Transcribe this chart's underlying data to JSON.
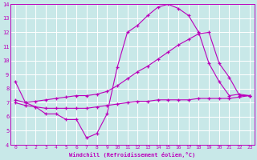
{
  "xlabel": "Windchill (Refroidissement éolien,°C)",
  "bg_color": "#c8e8e8",
  "grid_color": "#ffffff",
  "line_color": "#bb00bb",
  "xlim": [
    -0.5,
    23.5
  ],
  "ylim": [
    4,
    14
  ],
  "xticks": [
    0,
    1,
    2,
    3,
    4,
    5,
    6,
    7,
    8,
    9,
    10,
    11,
    12,
    13,
    14,
    15,
    16,
    17,
    18,
    19,
    20,
    21,
    22,
    23
  ],
  "yticks": [
    4,
    5,
    6,
    7,
    8,
    9,
    10,
    11,
    12,
    13,
    14
  ],
  "line1_x": [
    0,
    1,
    2,
    3,
    4,
    5,
    6,
    7,
    8,
    9,
    10,
    11,
    12,
    13,
    14,
    15,
    16,
    17,
    18,
    19,
    20,
    21,
    22,
    23
  ],
  "line1_y": [
    8.5,
    7.0,
    6.7,
    6.2,
    6.2,
    5.8,
    5.8,
    4.5,
    4.8,
    6.2,
    9.5,
    12.0,
    12.5,
    13.2,
    13.8,
    14.0,
    13.7,
    13.2,
    12.0,
    9.8,
    8.5,
    7.5,
    7.6,
    7.5
  ],
  "line2_x": [
    0,
    1,
    2,
    3,
    4,
    5,
    6,
    7,
    8,
    9,
    10,
    11,
    12,
    13,
    14,
    15,
    16,
    17,
    18,
    19,
    20,
    21,
    22,
    23
  ],
  "line2_y": [
    7.2,
    7.0,
    7.1,
    7.2,
    7.3,
    7.4,
    7.5,
    7.5,
    7.6,
    7.8,
    8.2,
    8.7,
    9.2,
    9.6,
    10.1,
    10.6,
    11.1,
    11.5,
    11.9,
    12.0,
    9.8,
    8.8,
    7.5,
    7.5
  ],
  "line3_x": [
    0,
    1,
    2,
    3,
    4,
    5,
    6,
    7,
    8,
    9,
    10,
    11,
    12,
    13,
    14,
    15,
    16,
    17,
    18,
    19,
    20,
    21,
    22,
    23
  ],
  "line3_y": [
    7.0,
    6.8,
    6.7,
    6.6,
    6.6,
    6.6,
    6.6,
    6.6,
    6.7,
    6.8,
    6.9,
    7.0,
    7.1,
    7.1,
    7.2,
    7.2,
    7.2,
    7.2,
    7.3,
    7.3,
    7.3,
    7.3,
    7.4,
    7.5
  ]
}
